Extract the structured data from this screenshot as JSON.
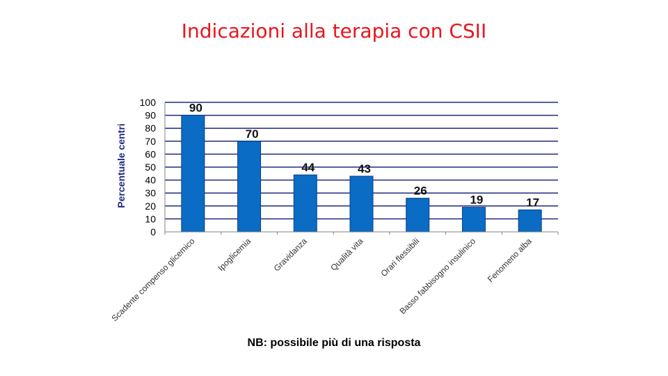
{
  "slide": {
    "title": "Indicazioni alla terapia con CSII",
    "footnote": "NB: possibile più di una risposta"
  },
  "chart_data": {
    "type": "bar",
    "title": "",
    "xlabel": "",
    "ylabel": "Percentuale centri",
    "ylim": [
      0,
      100
    ],
    "yticks": [
      0,
      10,
      20,
      30,
      40,
      50,
      60,
      70,
      80,
      90,
      100
    ],
    "grid": true,
    "legend": "none",
    "categories": [
      "Scadente compenso glicemico",
      "Ipoglicemia",
      "Gravidanza",
      "Qualità vita",
      "Orari flessibili",
      "Basso fabbisogno insulinico",
      "Fenomeno alba"
    ],
    "values": [
      90,
      70,
      44,
      43,
      26,
      19,
      17
    ],
    "data_labels": [
      "90",
      "70",
      "44",
      "43",
      "26",
      "19",
      "17"
    ],
    "colors": {
      "bar": "#0a6cc4",
      "bar_stroke": "#0a3e86",
      "grid": "#1f2a80",
      "axis_text": "#000000",
      "ylabel": "#1f2a80"
    }
  }
}
